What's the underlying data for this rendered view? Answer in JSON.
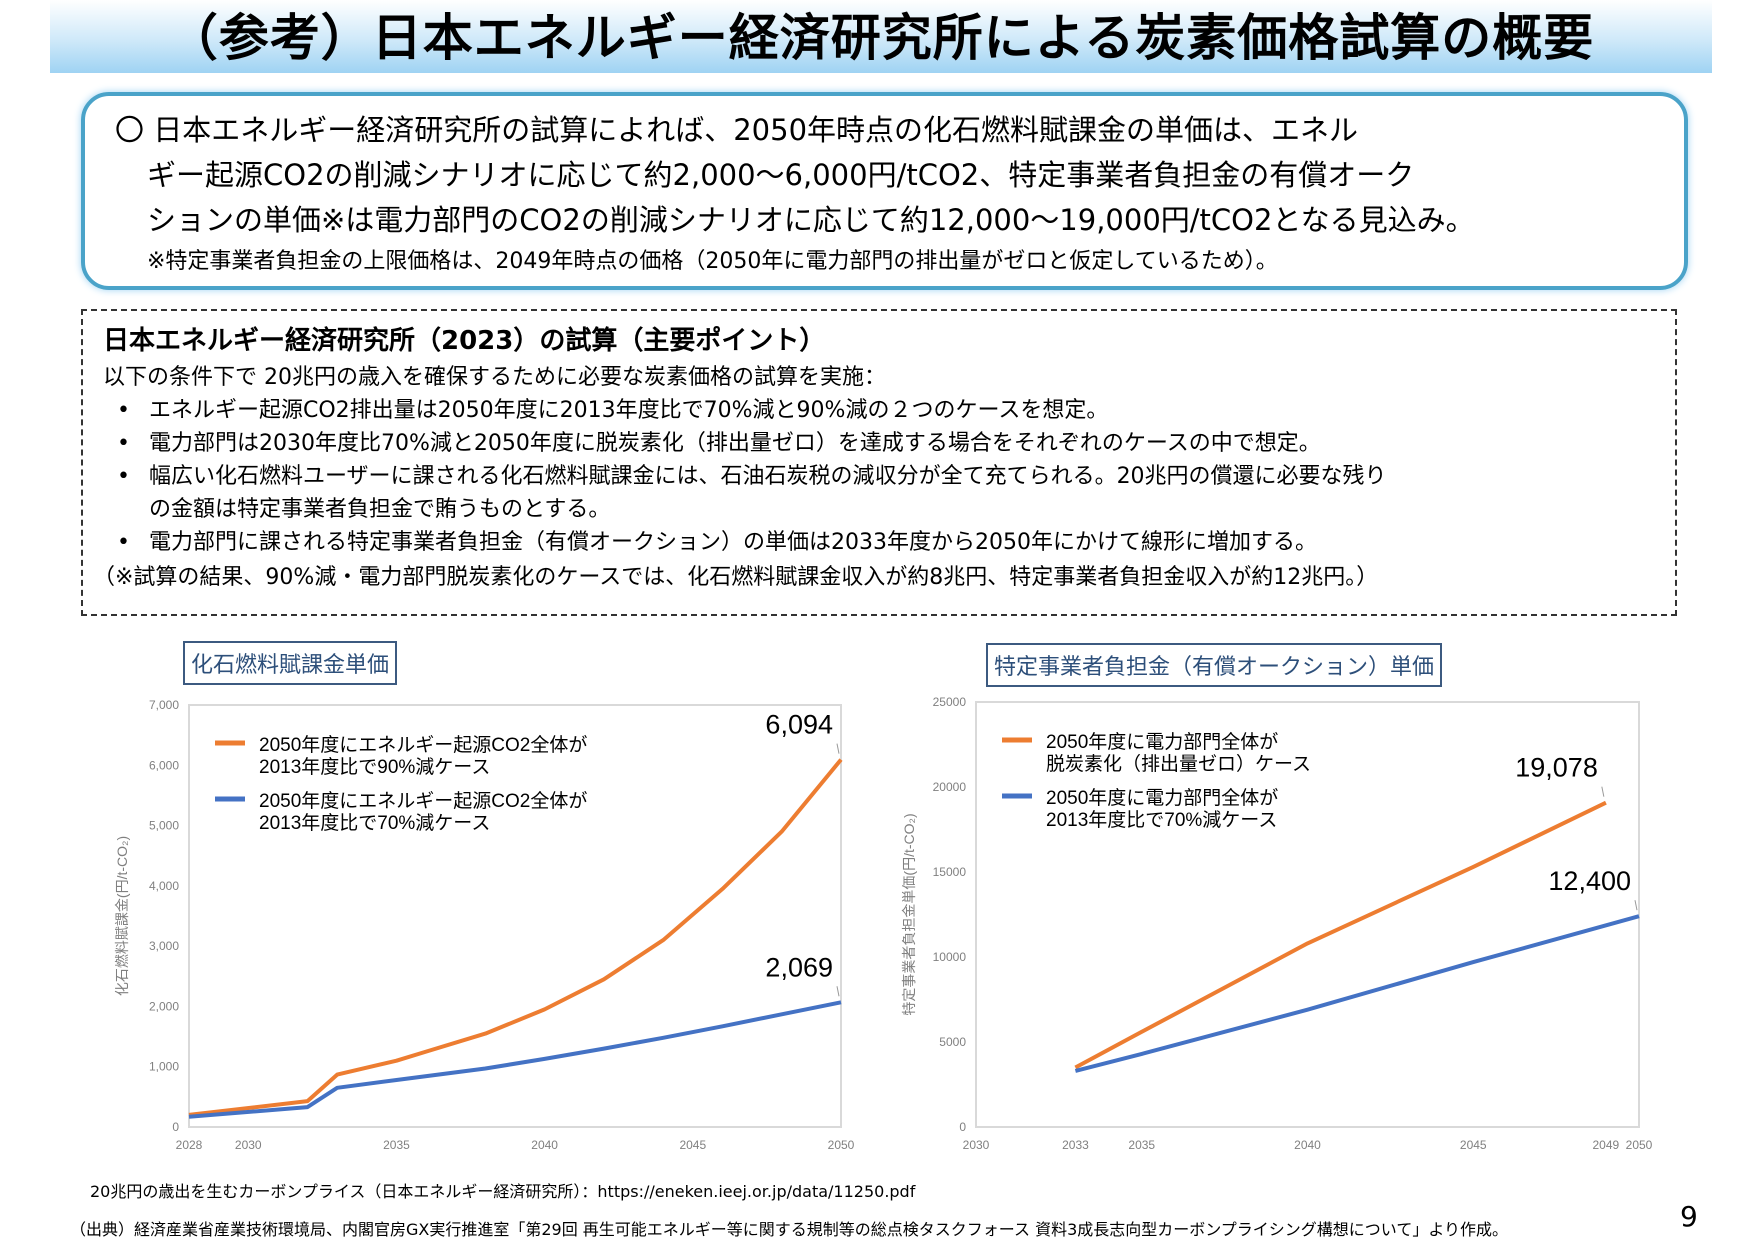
{
  "title": "（参考）日本エネルギー経済研究所による炭素価格試算の概要",
  "summary": {
    "lines": [
      "〇 日本エネルギー経済研究所の試算によれば、2050年時点の化石燃料賦課金の単価は、エネル",
      "ギー起源CO2の削減シナリオに応じて約2,000～6,000円/tCO2、特定事業者負担金の有償オーク",
      "ションの単価※は電力部門のCO2の削減シナリオに応じて約12,000～19,000円/tCO2となる見込み。"
    ],
    "note": "※特定事業者負担金の上限価格は、2049年時点の価格（2050年に電力部門の排出量がゼロと仮定しているため）。"
  },
  "points": {
    "heading": "日本エネルギー経済研究所（2023）の試算（主要ポイント）",
    "intro": "以下の条件下で 20兆円の歳入を確保するために必要な炭素価格の試算を実施：",
    "bullet": "•",
    "items": [
      "エネルギー起源CO2排出量は2050年度に2013年度比で70%減と90%減の２つのケースを想定。",
      "電力部門は2030年度比70%減と2050年度に脱炭素化（排出量ゼロ）を達成する場合をそれぞれのケースの中で想定。",
      "幅広い化石燃料ユーザーに課される化石燃料賦課金には、石油石炭税の減収分が全て充てられる。20兆円の償還に必要な残り\nの金額は特定事業者負担金で賄うものとする。",
      "電力部門に課される特定事業者負担金（有償オークション）の単価は2033年度から2050年にかけて線形に増加する。"
    ],
    "footnote": "（※試算の結果、90%減・電力部門脱炭素化のケースでは、化石燃料賦課金収入が約8兆円、特定事業者負担金収入が約12兆円。）"
  },
  "chart_data": [
    {
      "type": "line",
      "title": "化石燃料賦課金単価",
      "ylabel": "化石燃料賦課金(円/t-CO₂)",
      "xlabel": "",
      "xlim": [
        2028,
        2050
      ],
      "ylim": [
        0,
        7000
      ],
      "xticks": [
        "2028",
        "2030",
        "2035",
        "2040",
        "2045",
        "2050"
      ],
      "yticks": [
        "0",
        "1,000",
        "2,000",
        "3,000",
        "4,000",
        "5,000",
        "6,000",
        "7,000"
      ],
      "legend": "top-left",
      "grid": false,
      "series": [
        {
          "name": "2050年度にエネルギー起源CO2全体が\n2013年度比で90%減ケース",
          "color": "#ed7d31",
          "x": [
            2028,
            2032,
            2033,
            2035,
            2036,
            2038,
            2040,
            2042,
            2044,
            2046,
            2048,
            2050
          ],
          "y": [
            200,
            430,
            870,
            1100,
            1250,
            1550,
            1950,
            2450,
            3100,
            3950,
            4900,
            6094
          ],
          "end_label": "6,094"
        },
        {
          "name": "2050年度にエネルギー起源CO2全体が\n2013年度比で70%減ケース",
          "color": "#4472c4",
          "x": [
            2028,
            2032,
            2033,
            2035,
            2038,
            2040,
            2042,
            2044,
            2046,
            2048,
            2050
          ],
          "y": [
            170,
            330,
            650,
            780,
            970,
            1130,
            1300,
            1480,
            1670,
            1870,
            2069
          ],
          "end_label": "2,069"
        }
      ]
    },
    {
      "type": "line",
      "title": "特定事業者負担金（有償オークション）単価",
      "ylabel": "特定事業者負担金単価(円/t-CO₂)",
      "xlabel": "",
      "xlim": [
        2030,
        2050
      ],
      "ylim": [
        0,
        25000
      ],
      "xticks": [
        "2030",
        "2033",
        "2035",
        "2040",
        "2045",
        "2049",
        "2050"
      ],
      "yticks": [
        "0",
        "5000",
        "10000",
        "15000",
        "20000",
        "25000"
      ],
      "legend": "top-left",
      "grid": false,
      "series": [
        {
          "name": "2050年度に電力部門全体が\n脱炭素化（排出量ゼロ）ケース",
          "color": "#ed7d31",
          "x": [
            2033,
            2035,
            2040,
            2045,
            2049
          ],
          "y": [
            3500,
            5600,
            10800,
            15300,
            19078
          ],
          "end_label": "19,078"
        },
        {
          "name": "2050年度に電力部門全体が\n2013年度比で70%減ケース",
          "color": "#4472c4",
          "x": [
            2033,
            2035,
            2040,
            2045,
            2050
          ],
          "y": [
            3300,
            4300,
            6900,
            9700,
            12400
          ],
          "end_label": "12,400"
        }
      ]
    }
  ],
  "source1": "20兆円の歳出を生むカーボンプライス（日本エネルギー経済研究所）：https://eneken.ieej.or.jp/data/11250.pdf",
  "source2": "（出典）経済産業省産業技術環境局、内閣官房GX実行推進室「第29回 再生可能エネルギー等に関する規制等の総点検タスクフォース 資料3成長志向型カーボンプライシング構想について」より作成。",
  "page_number": "9"
}
